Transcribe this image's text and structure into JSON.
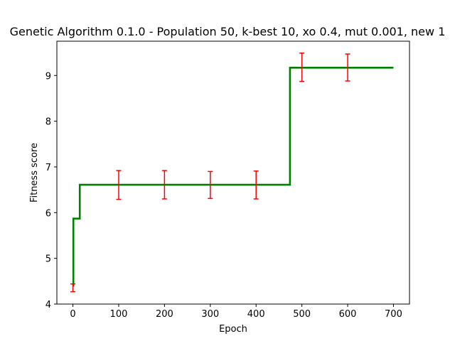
{
  "chart_data": {
    "type": "line",
    "title": "Genetic Algorithm 0.1.0 - Population 50, k-best 10, xo 0.4, mut 0.001, new 1",
    "xlabel": "Epoch",
    "ylabel": "Fitness score",
    "xlim": [
      -35,
      735
    ],
    "ylim": [
      4,
      9.75
    ],
    "xticks": [
      0,
      100,
      200,
      300,
      400,
      500,
      600,
      700
    ],
    "xtick_labels": [
      "0",
      "100",
      "200",
      "300",
      "400",
      "500",
      "600",
      "700"
    ],
    "yticks": [
      4,
      5,
      6,
      7,
      8,
      9
    ],
    "ytick_labels": [
      "4",
      "5",
      "6",
      "7",
      "8",
      "9"
    ],
    "grid": false,
    "legend": "none",
    "series": [
      {
        "line_color": "#008000",
        "step_points": [
          {
            "x": 0,
            "y": 4.4
          },
          {
            "x": 1,
            "y": 4.4
          },
          {
            "x": 1,
            "y": 5.87
          },
          {
            "x": 15,
            "y": 5.87
          },
          {
            "x": 15,
            "y": 6.61
          },
          {
            "x": 474,
            "y": 6.61
          },
          {
            "x": 474,
            "y": 9.17
          },
          {
            "x": 700,
            "y": 9.17
          }
        ]
      }
    ],
    "error_bars": {
      "color": "#ff0000",
      "points": [
        {
          "x": 0,
          "y": 4.35,
          "lower": 4.27,
          "upper": 4.44
        },
        {
          "x": 100,
          "y": 6.61,
          "lower": 6.29,
          "upper": 6.92
        },
        {
          "x": 200,
          "y": 6.61,
          "lower": 6.3,
          "upper": 6.92
        },
        {
          "x": 300,
          "y": 6.61,
          "lower": 6.31,
          "upper": 6.9
        },
        {
          "x": 400,
          "y": 6.61,
          "lower": 6.3,
          "upper": 6.91
        },
        {
          "x": 500,
          "y": 9.17,
          "lower": 8.87,
          "upper": 9.49
        },
        {
          "x": 600,
          "y": 9.17,
          "lower": 8.88,
          "upper": 9.47
        }
      ]
    }
  }
}
